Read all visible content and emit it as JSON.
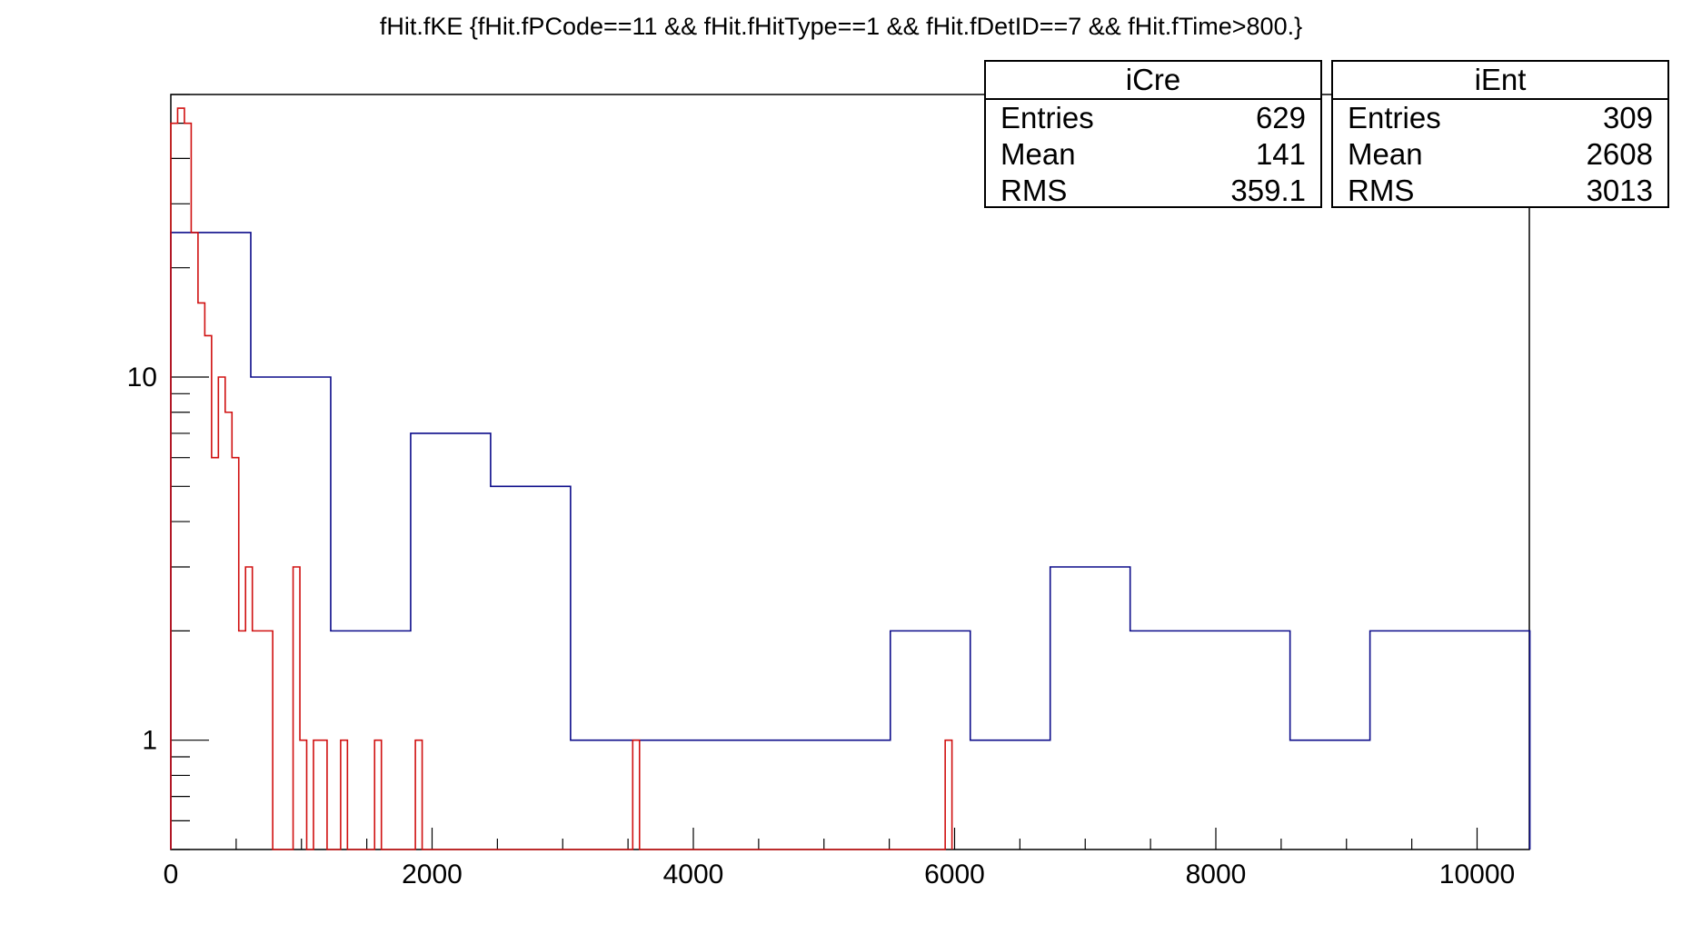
{
  "chart_data": {
    "type": "histogram",
    "title": "fHit.fKE {fHit.fPCode==11 && fHit.fHitType==1 && fHit.fDetID==7 && fHit.fTime>800.}",
    "xlabel": "",
    "ylabel": "",
    "xlim": [
      0,
      10400
    ],
    "ylim": [
      0.5,
      60
    ],
    "yscale": "log",
    "x_ticks": [
      "0",
      "2000",
      "4000",
      "6000",
      "8000",
      "10000"
    ],
    "y_ticks": [
      "1",
      "10"
    ],
    "grid": false,
    "series": [
      {
        "name": "iEnt",
        "color": "#0b0b8a",
        "bin_width": 612,
        "values": [
          25,
          10,
          2,
          7,
          5,
          1,
          1,
          1,
          1,
          2,
          1,
          3,
          2,
          2,
          1,
          2,
          2
        ]
      },
      {
        "name": "iCre",
        "color": "#d01010",
        "bin_width": 52,
        "values": [
          50,
          55,
          50,
          25,
          16,
          13,
          6,
          10,
          8,
          6,
          2,
          3,
          2,
          2,
          2,
          0,
          0,
          0,
          3,
          1,
          0,
          1,
          1,
          0,
          0,
          1,
          0,
          0,
          0,
          0,
          1,
          0,
          0,
          0,
          0,
          0,
          1,
          0,
          0,
          0,
          0,
          0,
          0,
          0,
          0,
          0,
          0,
          0,
          0,
          0,
          0,
          0,
          0,
          0,
          0,
          0,
          0,
          0,
          0,
          0,
          0,
          0,
          0,
          0,
          0,
          0,
          0,
          0,
          1,
          0,
          0,
          0,
          0,
          0,
          0,
          0,
          0,
          0,
          0,
          0,
          0,
          0,
          0,
          0,
          0,
          0,
          0,
          0,
          0,
          0,
          0,
          0,
          0,
          0,
          0,
          0,
          0,
          0,
          0,
          0,
          0,
          0,
          0,
          0,
          0,
          0,
          0,
          0,
          0,
          0,
          0,
          0,
          0,
          0,
          1
        ]
      }
    ]
  },
  "stats": [
    {
      "name": "iCre",
      "rows": [
        {
          "label": "Entries",
          "value": "629"
        },
        {
          "label": "Mean",
          "value": "141"
        },
        {
          "label": "RMS",
          "value": "359.1"
        }
      ]
    },
    {
      "name": "iEnt",
      "rows": [
        {
          "label": "Entries",
          "value": "309"
        },
        {
          "label": "Mean",
          "value": "2608"
        },
        {
          "label": "RMS",
          "value": "3013"
        }
      ]
    }
  ]
}
